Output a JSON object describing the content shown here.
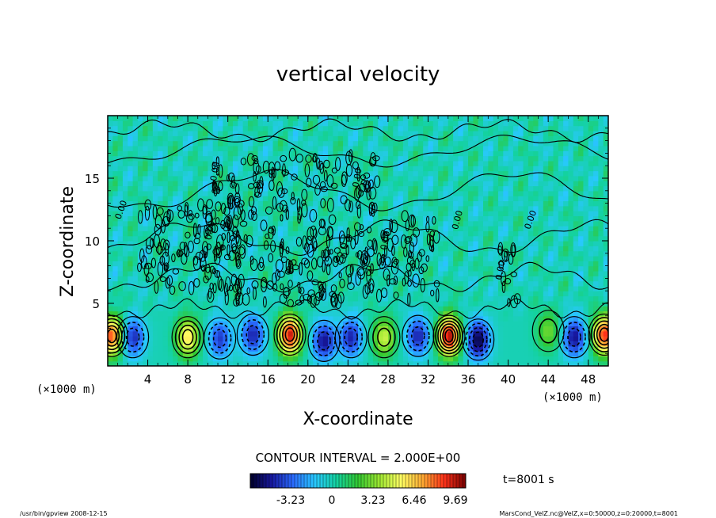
{
  "chart_data": {
    "type": "heatmap",
    "title": "vertical velocity",
    "xlabel": "X-coordinate",
    "ylabel": "Z-coordinate",
    "x_unit": "(×1000 m)",
    "y_unit": "(×1000 m)",
    "xlim": [
      0,
      50
    ],
    "ylim": [
      0,
      20
    ],
    "x_ticks": [
      4,
      8,
      12,
      16,
      20,
      24,
      28,
      32,
      36,
      40,
      44,
      48
    ],
    "y_ticks": [
      5,
      10,
      15
    ],
    "contour_interval_text": "CONTOUR INTERVAL = 2.000E+00",
    "contour_labels": [
      "0.00",
      "0.00",
      "0.00",
      "0.00",
      "0.00",
      "0.00",
      "0.00",
      "0.00"
    ],
    "colorbar": {
      "ticks": [
        "-3.23",
        "0",
        "3.23",
        "6.46",
        "9.69"
      ],
      "tick_values": [
        -3.23,
        0,
        3.23,
        6.46,
        9.69
      ],
      "vmin": -6.4,
      "vmax": 10.5,
      "colormap": [
        "#000028",
        "#1818a0",
        "#2a6cff",
        "#29c8ff",
        "#14d2a0",
        "#32c832",
        "#9ee832",
        "#ffff64",
        "#ffaa32",
        "#ff3219",
        "#780000"
      ]
    },
    "time_label": "t=8001 s",
    "features": [
      {
        "kind": "updraft",
        "x": 0.4,
        "z": 2.4,
        "w": 8.5
      },
      {
        "kind": "downdraft",
        "x": 2.5,
        "z": 2.3,
        "w": -4.5
      },
      {
        "kind": "updraft",
        "x": 8.0,
        "z": 2.3,
        "w": 6.0
      },
      {
        "kind": "downdraft",
        "x": 11.2,
        "z": 2.2,
        "w": -4.0
      },
      {
        "kind": "downdraft",
        "x": 14.5,
        "z": 2.5,
        "w": -4.5
      },
      {
        "kind": "updraft",
        "x": 18.2,
        "z": 2.5,
        "w": 9.5
      },
      {
        "kind": "downdraft",
        "x": 21.6,
        "z": 2.0,
        "w": -5.0
      },
      {
        "kind": "downdraft",
        "x": 24.3,
        "z": 2.3,
        "w": -4.5
      },
      {
        "kind": "updraft",
        "x": 27.6,
        "z": 2.3,
        "w": 4.5
      },
      {
        "kind": "downdraft",
        "x": 31.0,
        "z": 2.4,
        "w": -4.5
      },
      {
        "kind": "updraft",
        "x": 34.1,
        "z": 2.4,
        "w": 10.0
      },
      {
        "kind": "downdraft",
        "x": 37.0,
        "z": 2.1,
        "w": -6.0
      },
      {
        "kind": "updraft",
        "x": 44.0,
        "z": 2.8,
        "w": 3.0
      },
      {
        "kind": "downdraft",
        "x": 46.6,
        "z": 2.3,
        "w": -5.0
      },
      {
        "kind": "updraft",
        "x": 49.6,
        "z": 2.5,
        "w": 9.0
      }
    ]
  },
  "footer": {
    "left": "/usr/bin/gpview    2008-12-15",
    "right": "MarsCond_VelZ.nc@VelZ,x=0:50000,z=0:20000,t=8001"
  }
}
